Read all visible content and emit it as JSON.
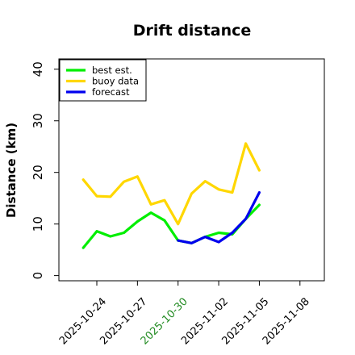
{
  "chart_data": {
    "type": "line",
    "title": "Drift distance",
    "xlabel": "",
    "ylabel": "Distance (km)",
    "ylim": [
      -1,
      42
    ],
    "yticks": [
      0,
      10,
      20,
      30,
      40
    ],
    "xticks": [
      {
        "label": "2025-10-24",
        "x": 0,
        "color": "#000000"
      },
      {
        "label": "2025-10-27",
        "x": 3,
        "color": "#000000"
      },
      {
        "label": "2025-10-30",
        "x": 6,
        "color": "#228b22"
      },
      {
        "label": "2025-11-02",
        "x": 9,
        "color": "#000000"
      },
      {
        "label": "2025-11-05",
        "x": 12,
        "color": "#000000"
      },
      {
        "label": "2025-11-08",
        "x": 15,
        "color": "#000000"
      }
    ],
    "xlim": [
      -2.8,
      16.8
    ],
    "legend_position": "top-left",
    "series": [
      {
        "name": "best est.",
        "color": "#00ee00",
        "x": [
          -1,
          0,
          1,
          2,
          3,
          4,
          5,
          6,
          7,
          8,
          9,
          10,
          11,
          12
        ],
        "values": [
          5.4,
          8.6,
          7.6,
          8.3,
          10.5,
          12.2,
          10.7,
          6.8,
          6.3,
          7.5,
          8.3,
          8.0,
          11.0,
          13.7
        ]
      },
      {
        "name": "buoy data",
        "color": "#ffd700",
        "x": [
          -1,
          0,
          1,
          2,
          3,
          4,
          5,
          6,
          7,
          8,
          9,
          10,
          11,
          12
        ],
        "values": [
          18.6,
          15.4,
          15.3,
          18.2,
          19.2,
          13.8,
          14.6,
          10.0,
          15.9,
          18.3,
          16.7,
          16.1,
          25.6,
          20.4
        ]
      },
      {
        "name": "forecast",
        "color": "#0000ee",
        "x": [
          6,
          7,
          8,
          9,
          10,
          11,
          12
        ],
        "values": [
          6.8,
          6.3,
          7.5,
          6.5,
          8.3,
          11.0,
          16.1
        ]
      }
    ]
  }
}
